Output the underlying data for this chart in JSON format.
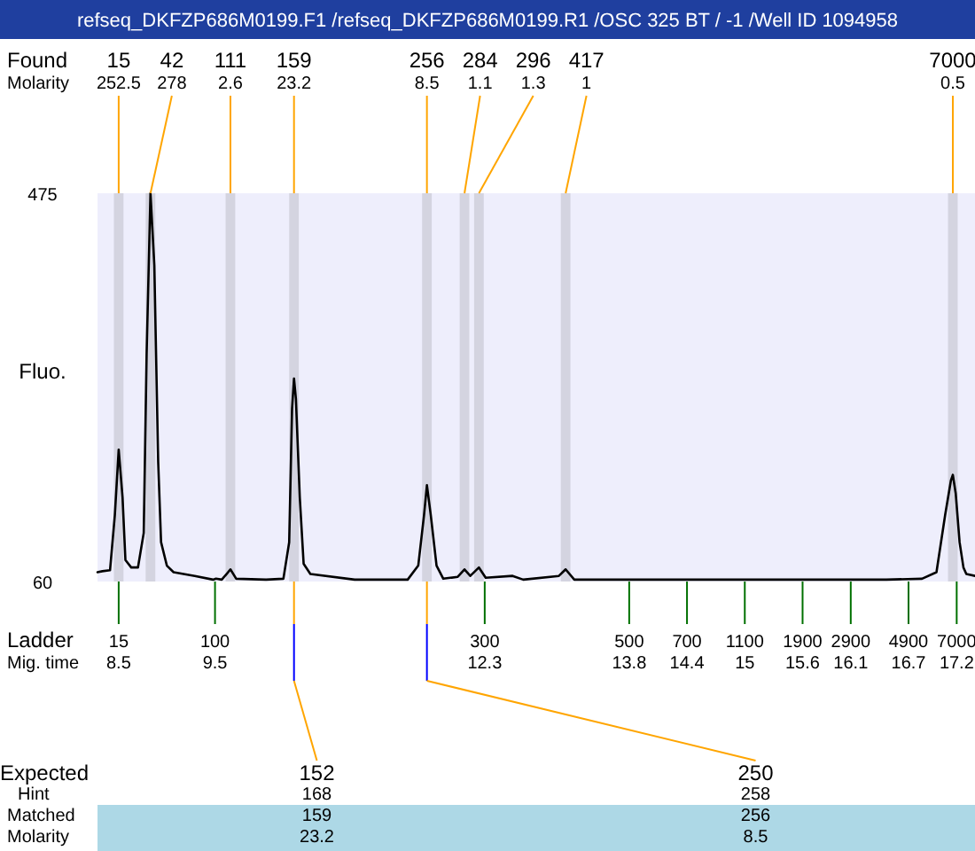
{
  "chart_data": {
    "type": "line",
    "title": "refseq_DKFZP686M0199.F1 /refseq_DKFZP686M0199.R1 /OSC 325 BT / -1 /Well ID 1094958",
    "ylabel": "Fluo.",
    "xlim": [
      8.28,
      17.39
    ],
    "ylim": [
      60,
      475
    ],
    "yticks": [
      60,
      475
    ],
    "xticks": [
      8.5,
      9.5,
      12.3,
      13.8,
      14.4,
      15,
      15.6,
      16.1,
      16.7,
      17.2
    ],
    "series": [
      {
        "color": "#000000",
        "x": [
          8.28,
          8.33,
          8.41,
          8.46,
          8.5,
          8.54,
          8.57,
          8.63,
          8.7,
          8.76,
          8.79,
          8.83,
          8.87,
          8.91,
          8.94,
          9.0,
          9.07,
          9.29,
          9.48,
          9.51,
          9.57,
          9.62,
          9.66,
          9.72,
          10.03,
          10.21,
          10.27,
          10.3,
          10.32,
          10.34,
          10.38,
          10.42,
          10.49,
          10.95,
          11.5,
          11.61,
          11.67,
          11.7,
          11.74,
          11.8,
          11.87,
          12.02,
          12.09,
          12.15,
          12.24,
          12.31,
          12.59,
          12.7,
          13.07,
          13.14,
          13.23,
          13.71,
          14.63,
          15.55,
          16.47,
          16.84,
          16.99,
          17.08,
          17.14,
          17.16,
          17.19,
          17.23,
          17.27,
          17.3,
          17.39
        ],
        "values": [
          70,
          71,
          72,
          131,
          201,
          150,
          83,
          75,
          75,
          112,
          303,
          475,
          398,
          188,
          102,
          77,
          70,
          66,
          62,
          63,
          62,
          68,
          73,
          63,
          62,
          63,
          102,
          245,
          277,
          255,
          150,
          79,
          68,
          62,
          62,
          77,
          131,
          163,
          131,
          77,
          63,
          65,
          73,
          66,
          75,
          64,
          66,
          62,
          66,
          73,
          62,
          62,
          62,
          62,
          62,
          63,
          70,
          131,
          168,
          174,
          154,
          102,
          75,
          68,
          66
        ]
      }
    ],
    "bands": [
      {
        "axis": "x",
        "from": 8.45,
        "to": 8.55,
        "color": "#d4d4e0"
      },
      {
        "axis": "x",
        "from": 8.78,
        "to": 8.88,
        "color": "#d4d4e0"
      },
      {
        "axis": "x",
        "from": 9.61,
        "to": 9.71,
        "color": "#d4d4e0"
      },
      {
        "axis": "x",
        "from": 10.27,
        "to": 10.37,
        "color": "#d4d4e0"
      },
      {
        "axis": "x",
        "from": 11.65,
        "to": 11.75,
        "color": "#d4d4e0"
      },
      {
        "axis": "x",
        "from": 12.04,
        "to": 12.14,
        "color": "#d4d4e0"
      },
      {
        "axis": "x",
        "from": 12.19,
        "to": 12.29,
        "color": "#d4d4e0"
      },
      {
        "axis": "x",
        "from": 13.09,
        "to": 13.19,
        "color": "#d4d4e0"
      },
      {
        "axis": "x",
        "from": 17.11,
        "to": 17.21,
        "color": "#d4d4e0"
      }
    ],
    "annotations": [
      "Found",
      "Molarity",
      "Ladder",
      "Mig. time",
      "Expected",
      "Hint",
      "Matched",
      "Molarity",
      "15",
      "100",
      "300",
      "500",
      "700",
      "1100",
      "1900",
      "2900",
      "4900",
      "7000",
      {
        "text": "15",
        "x": 8.5
      },
      "252.5",
      {
        "text": "42",
        "x": 8.83
      },
      "278",
      {
        "text": "111",
        "x": 9.66
      },
      "2.6",
      {
        "text": "159",
        "x": 10.32
      },
      "23.2",
      {
        "text": "256",
        "x": 11.7
      },
      "8.5",
      {
        "text": "284",
        "x": 12.09
      },
      "1.1",
      {
        "text": "296",
        "x": 12.24
      },
      "1.3",
      {
        "text": "417",
        "x": 13.14
      },
      "1",
      {
        "text": "7000",
        "x": 17.16
      },
      "0.5",
      {
        "text": "152",
        "x": 10.32
      },
      "168",
      "159",
      "23.2",
      {
        "text": "250",
        "x": 11.7
      },
      "258",
      "256",
      "8.5"
    ]
  }
}
